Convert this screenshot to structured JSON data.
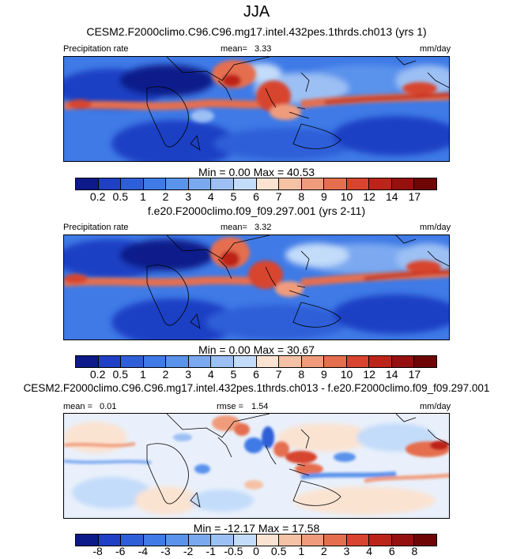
{
  "season": "JJA",
  "panels": [
    {
      "title": "CESM2.F2000climo.C96.C96.mg17.intel.432pes.1thrds.ch013 (yrs 1)",
      "left_label": "Precipitation rate",
      "center_label": "mean=",
      "center_value": "3.33",
      "units": "mm/day",
      "minmax": "Min =   0.00 Max =  40.53",
      "colorbar_labels": [
        "0.2",
        "0.5",
        "1",
        "2",
        "3",
        "4",
        "5",
        "6",
        "7",
        "8",
        "9",
        "10",
        "12",
        "14",
        "17"
      ]
    },
    {
      "title": "f.e20.F2000climo.f09_f09.297.001 (yrs 2-11)",
      "left_label": "Precipitation rate",
      "center_label": "mean=",
      "center_value": "3.32",
      "units": "mm/day",
      "minmax": "Min =   0.00 Max =  30.67",
      "colorbar_labels": [
        "0.2",
        "0.5",
        "1",
        "2",
        "3",
        "4",
        "5",
        "6",
        "7",
        "8",
        "9",
        "10",
        "12",
        "14",
        "17"
      ]
    },
    {
      "title": "CESM2.F2000climo.C96.C96.mg17.intel.432pes.1thrds.ch013 - f.e20.F2000climo.f09_f09.297.001",
      "left_label": "mean =",
      "left_value": "0.01",
      "center_label": "rmse =",
      "center_value": "1.54",
      "units": "mm/day",
      "minmax": "Min = -12.17 Max =  17.58",
      "colorbar_labels": [
        "-8",
        "-6",
        "-4",
        "-3",
        "-2",
        "-1",
        "-0.5",
        "0",
        "0.5",
        "1",
        "2",
        "3",
        "4",
        "6",
        "8"
      ]
    }
  ],
  "colors": {
    "precip_scale": [
      "#0c1a8a",
      "#1f3fc4",
      "#2f5fd8",
      "#3f7ae6",
      "#5a93ec",
      "#7ba9f0",
      "#9cc0f4",
      "#c3dcfa",
      "#fbe3d2",
      "#f6c2a6",
      "#f09c7c",
      "#e56e4f",
      "#d8442f",
      "#bd2419",
      "#961010",
      "#6e0606"
    ],
    "diff_scale": [
      "#0c1a8a",
      "#1f3fc4",
      "#2f5fd8",
      "#3f7ae6",
      "#5a93ec",
      "#7ba9f0",
      "#9cc0f4",
      "#c3dcfa",
      "#fbe3d2",
      "#f6c2a6",
      "#f09c7c",
      "#e56e4f",
      "#d8442f",
      "#bd2419",
      "#961010",
      "#6e0606"
    ]
  }
}
